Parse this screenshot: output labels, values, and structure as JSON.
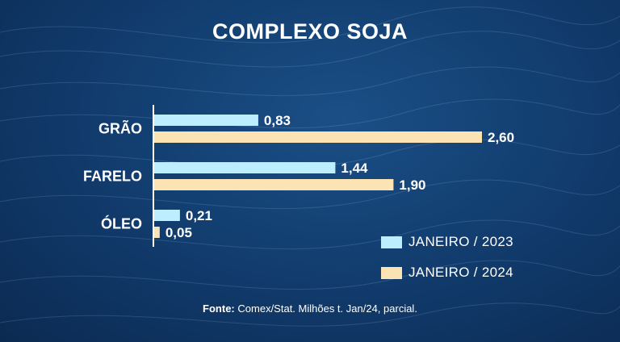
{
  "title": "COMPLEXO SOJA",
  "source": {
    "label": "Fonte:",
    "text": "Comex/Stat. Milhões t. Jan/24, parcial."
  },
  "colors": {
    "series_2023": "#bdeeff",
    "series_2024": "#fbe3b4",
    "axis": "#ffffff"
  },
  "chart_data": {
    "type": "bar",
    "orientation": "horizontal",
    "title": "COMPLEXO SOJA",
    "categories": [
      "GRÃO",
      "FARELO",
      "ÓLEO"
    ],
    "series": [
      {
        "name": "JANEIRO / 2023",
        "values": [
          0.83,
          1.44,
          0.21
        ],
        "labels": [
          "0,83",
          "1,44",
          "0,21"
        ]
      },
      {
        "name": "JANEIRO / 2024",
        "values": [
          2.6,
          1.9,
          0.05
        ],
        "labels": [
          "2,60",
          "1,90",
          "0,05"
        ]
      }
    ],
    "xlim": [
      0,
      2.6
    ],
    "legend_position": "bottom-right",
    "unit": "Milhões t."
  }
}
